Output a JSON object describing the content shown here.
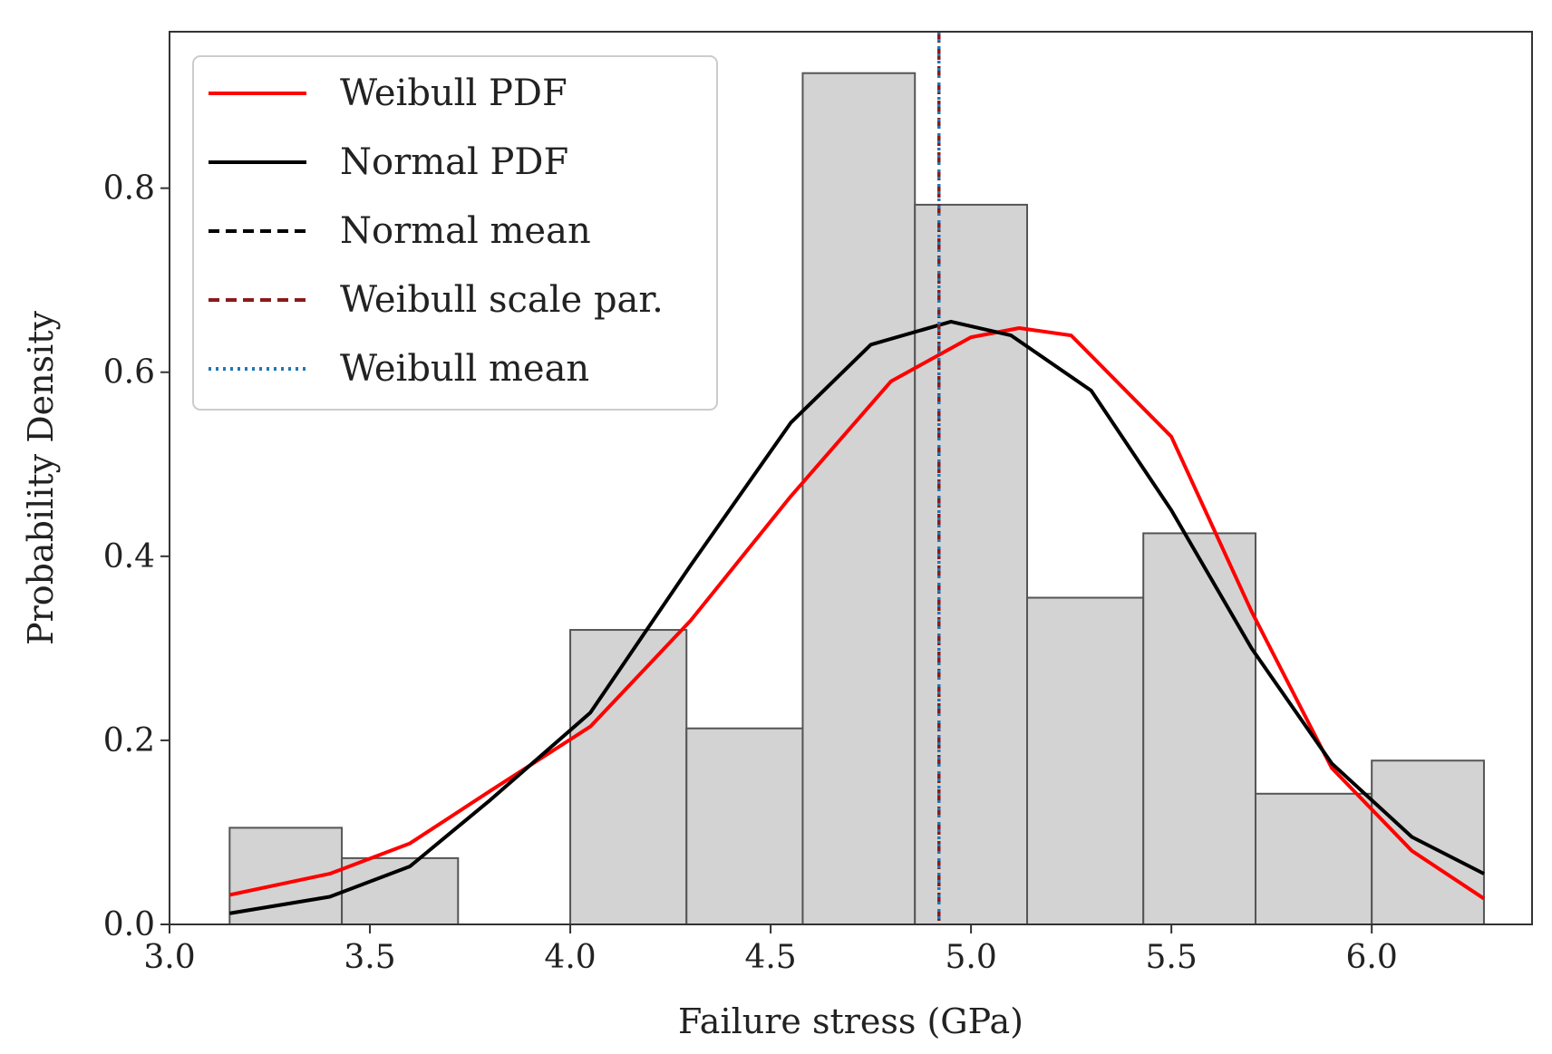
{
  "chart_data": {
    "type": "bar",
    "title": "",
    "xlabel": "Failure stress (GPa)",
    "ylabel": "Probability Density",
    "xlim": [
      3.0,
      6.4
    ],
    "ylim": [
      0.0,
      0.97
    ],
    "xticks": [
      3.0,
      3.5,
      4.0,
      4.5,
      5.0,
      5.5,
      6.0
    ],
    "xtick_labels": [
      "3.0",
      "3.5",
      "4.0",
      "4.5",
      "5.0",
      "5.5",
      "6.0"
    ],
    "yticks": [
      0.0,
      0.2,
      0.4,
      0.6,
      0.8
    ],
    "ytick_labels": [
      "0.0",
      "0.2",
      "0.4",
      "0.6",
      "0.8"
    ],
    "grid": false,
    "legend_position": "top-left",
    "histogram": {
      "name": "Histogram",
      "bin_edges": [
        3.15,
        3.43,
        3.72,
        4.0,
        4.29,
        4.58,
        4.86,
        5.14,
        5.43,
        5.71,
        6.0,
        6.28
      ],
      "values": [
        0.105,
        0.072,
        0.0,
        0.32,
        0.213,
        0.925,
        0.782,
        0.355,
        0.425,
        0.142,
        0.178
      ],
      "fill": "#d3d3d3",
      "edge": "#555555"
    },
    "series": [
      {
        "name": "Weibull PDF",
        "style": "solid",
        "color": "#ff0000",
        "x": [
          3.15,
          3.4,
          3.6,
          3.8,
          4.05,
          4.3,
          4.55,
          4.8,
          5.0,
          5.12,
          5.25,
          5.5,
          5.7,
          5.9,
          6.1,
          6.28
        ],
        "y": [
          0.032,
          0.055,
          0.088,
          0.145,
          0.215,
          0.33,
          0.465,
          0.59,
          0.638,
          0.648,
          0.64,
          0.53,
          0.34,
          0.17,
          0.08,
          0.028
        ]
      },
      {
        "name": "Normal PDF",
        "style": "solid",
        "color": "#000000",
        "x": [
          3.15,
          3.4,
          3.6,
          3.8,
          4.05,
          4.3,
          4.55,
          4.75,
          4.95,
          5.1,
          5.3,
          5.5,
          5.7,
          5.9,
          6.1,
          6.28
        ],
        "y": [
          0.012,
          0.03,
          0.063,
          0.135,
          0.23,
          0.39,
          0.545,
          0.63,
          0.655,
          0.64,
          0.58,
          0.45,
          0.3,
          0.175,
          0.095,
          0.055
        ]
      }
    ],
    "reference_lines": [
      {
        "name": "Normal mean",
        "x": 4.92,
        "style": "dashed",
        "color": "#000000"
      },
      {
        "name": "Weibull scale par.",
        "x": 4.92,
        "style": "dashed",
        "color": "#8b1a1a"
      },
      {
        "name": "Weibull mean",
        "x": 4.92,
        "style": "dotted",
        "color": "#1f77b4"
      }
    ],
    "legend": [
      {
        "label": "Weibull PDF",
        "color": "#ff0000",
        "style": "solid"
      },
      {
        "label": "Normal PDF",
        "color": "#000000",
        "style": "solid"
      },
      {
        "label": "Normal mean",
        "color": "#000000",
        "style": "dashed"
      },
      {
        "label": "Weibull scale par.",
        "color": "#8b1a1a",
        "style": "dashed"
      },
      {
        "label": "Weibull mean",
        "color": "#1f77b4",
        "style": "dotted"
      }
    ]
  }
}
